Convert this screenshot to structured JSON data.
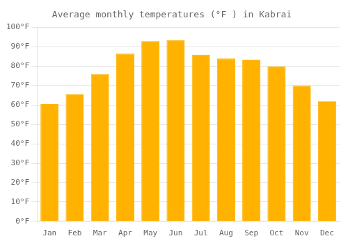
{
  "chart_data": {
    "type": "bar",
    "title": "Average monthly temperatures (°F ) in Kabrai",
    "categories": [
      "Jan",
      "Feb",
      "Mar",
      "Apr",
      "May",
      "Jun",
      "Jul",
      "Aug",
      "Sep",
      "Oct",
      "Nov",
      "Dec"
    ],
    "values": [
      60.5,
      65.5,
      76,
      86.5,
      93,
      93.5,
      86,
      84,
      83.5,
      80,
      70,
      62
    ],
    "color": "#FFB300",
    "ylim": [
      0,
      100
    ],
    "yticks": [
      {
        "value": 0,
        "label": "0°F"
      },
      {
        "value": 10,
        "label": "10°F"
      },
      {
        "value": 20,
        "label": "20°F"
      },
      {
        "value": 30,
        "label": "30°F"
      },
      {
        "value": 40,
        "label": "40°F"
      },
      {
        "value": 50,
        "label": "50°F"
      },
      {
        "value": 60,
        "label": "60°F"
      },
      {
        "value": 70,
        "label": "70°F"
      },
      {
        "value": 80,
        "label": "80°F"
      },
      {
        "value": 90,
        "label": "90°F"
      },
      {
        "value": 100,
        "label": "100°F"
      }
    ],
    "grid": true
  }
}
